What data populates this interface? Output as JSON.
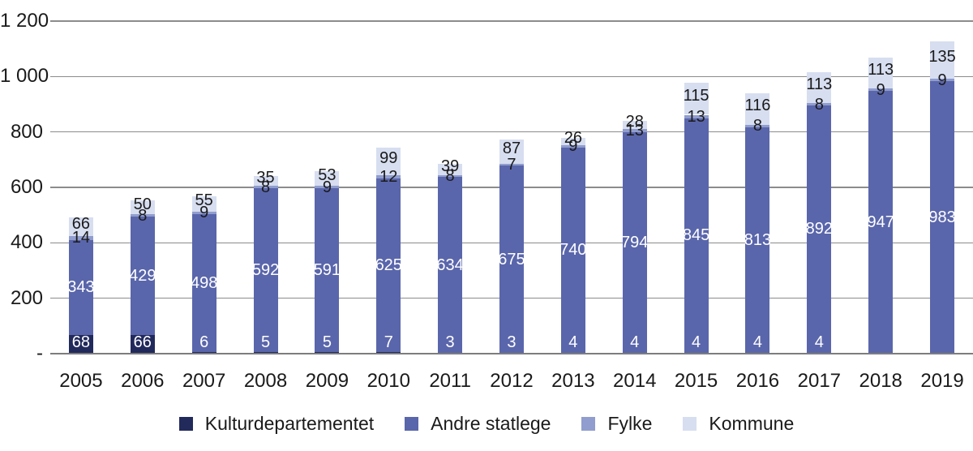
{
  "chart_data": {
    "type": "bar",
    "stacked": true,
    "title": "",
    "xlabel": "",
    "ylabel": "",
    "grid": true,
    "legend_position": "bottom",
    "categories": [
      "2005",
      "2006",
      "2007",
      "2008",
      "2009",
      "2010",
      "2011",
      "2012",
      "2013",
      "2014",
      "2015",
      "2016",
      "2017",
      "2018",
      "2019"
    ],
    "series": [
      {
        "name": "Kulturdepartementet",
        "color": "#222a5c",
        "label_color": "#ffffff",
        "values": [
          68,
          66,
          6,
          5,
          5,
          7,
          3,
          3,
          4,
          4,
          4,
          4,
          4,
          0,
          0
        ],
        "labels": [
          "68",
          "66",
          "6",
          "5",
          "5",
          "7",
          "3",
          "3",
          "4",
          "4",
          "4",
          "4",
          "4",
          "",
          ""
        ]
      },
      {
        "name": "Andre statlege",
        "color": "#5a66ab",
        "label_color": "#ffffff",
        "values": [
          343,
          429,
          498,
          592,
          591,
          625,
          634,
          675,
          740,
          794,
          845,
          813,
          892,
          947,
          983
        ],
        "labels": [
          "343",
          "429",
          "498",
          "592",
          "591",
          "625",
          "634",
          "675",
          "740",
          "794",
          "845",
          "813",
          "892",
          "947",
          "983"
        ]
      },
      {
        "name": "Fylke",
        "color": "#909dce",
        "label_color": "#1a1a1a",
        "values": [
          14,
          8,
          9,
          8,
          9,
          12,
          8,
          7,
          9,
          13,
          13,
          8,
          8,
          9,
          9
        ],
        "labels": [
          "14",
          "8",
          "9",
          "8",
          "9",
          "12",
          "8",
          "7",
          "9",
          "13",
          "13",
          "8",
          "8",
          "9",
          "9"
        ]
      },
      {
        "name": "Kommune",
        "color": "#d7def0",
        "label_color": "#1a1a1a",
        "values": [
          66,
          50,
          55,
          35,
          53,
          99,
          39,
          87,
          26,
          28,
          115,
          116,
          113,
          113,
          135
        ],
        "labels": [
          "66",
          "50",
          "55",
          "35",
          "53",
          "99",
          "39",
          "87",
          "26",
          "28",
          "115",
          "116",
          "113",
          "113",
          "135"
        ]
      }
    ],
    "y_axis": {
      "min": 0,
      "max": 1200,
      "step": 200,
      "tick_labels": [
        "-",
        "200",
        "400",
        "600",
        "800",
        "1 000",
        "1 200"
      ]
    },
    "legend": [
      "Kulturdepartementet",
      "Andre statlege",
      "Fylke",
      "Kommune"
    ]
  },
  "styles": {
    "text_color": "#1a1a1a",
    "grid_color": "#8c8c8c",
    "axis_line_color": "#7d7d7d",
    "background": "#ffffff"
  }
}
